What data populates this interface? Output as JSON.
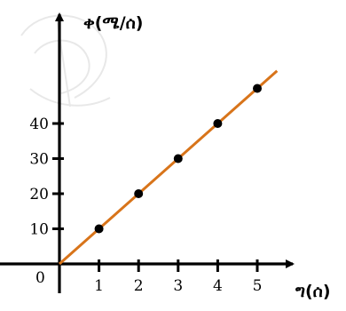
{
  "chart_data": {
    "type": "scatter",
    "title": "",
    "xlabel": "ግ(ሰ)",
    "ylabel": "ቀ(ሜ/ሰ)",
    "origin_label": "0",
    "x_ticks": [
      "1",
      "2",
      "3",
      "4",
      "5"
    ],
    "y_ticks": [
      "10",
      "20",
      "30",
      "40"
    ],
    "xlim": [
      0,
      5.5
    ],
    "ylim": [
      0,
      50
    ],
    "grid": false,
    "series": [
      {
        "x": [
          1.0,
          2.0,
          3.0,
          4.0,
          5.0
        ],
        "y": [
          10,
          20,
          30,
          40,
          50
        ]
      }
    ],
    "fit_line": {
      "color": "#d8741a",
      "slope": 10,
      "x_range": [
        0,
        5.5
      ]
    },
    "point_color": "#000000"
  }
}
